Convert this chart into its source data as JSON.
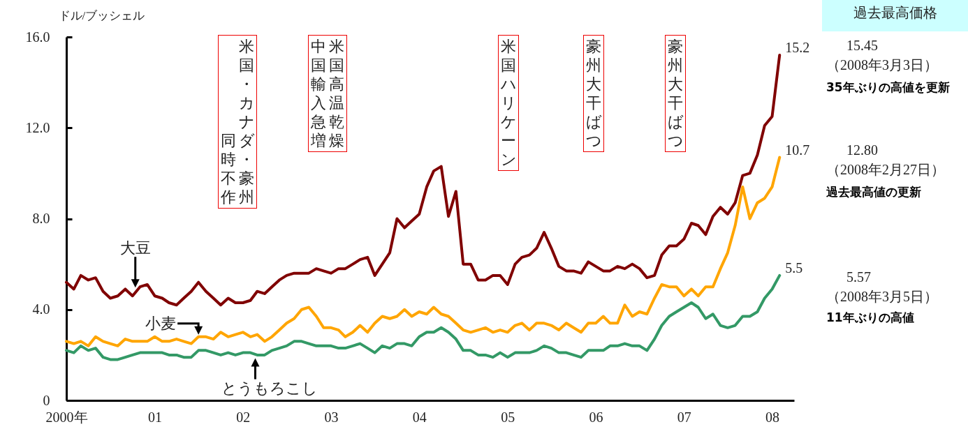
{
  "chart_data": {
    "type": "line",
    "ylabel": "ドル/ブッシェル",
    "x": [
      "2000-01",
      "2000-02",
      "2000-03",
      "2000-04",
      "2000-05",
      "2000-06",
      "2000-07",
      "2000-08",
      "2000-09",
      "2000-10",
      "2000-11",
      "2000-12",
      "2001-01",
      "2001-02",
      "2001-03",
      "2001-04",
      "2001-05",
      "2001-06",
      "2001-07",
      "2001-08",
      "2001-09",
      "2001-10",
      "2001-11",
      "2001-12",
      "2002-01",
      "2002-02",
      "2002-03",
      "2002-04",
      "2002-05",
      "2002-06",
      "2002-07",
      "2002-08",
      "2002-09",
      "2002-10",
      "2002-11",
      "2002-12",
      "2003-01",
      "2003-02",
      "2003-03",
      "2003-04",
      "2003-05",
      "2003-06",
      "2003-07",
      "2003-08",
      "2003-09",
      "2003-10",
      "2003-11",
      "2003-12",
      "2004-01",
      "2004-02",
      "2004-03",
      "2004-04",
      "2004-05",
      "2004-06",
      "2004-07",
      "2004-08",
      "2004-09",
      "2004-10",
      "2004-11",
      "2004-12",
      "2005-01",
      "2005-02",
      "2005-03",
      "2005-04",
      "2005-05",
      "2005-06",
      "2005-07",
      "2005-08",
      "2005-09",
      "2005-10",
      "2005-11",
      "2005-12",
      "2006-01",
      "2006-02",
      "2006-03",
      "2006-04",
      "2006-05",
      "2006-06",
      "2006-07",
      "2006-08",
      "2006-09",
      "2006-10",
      "2006-11",
      "2006-12",
      "2007-01",
      "2007-02",
      "2007-03",
      "2007-04",
      "2007-05",
      "2007-06",
      "2007-07",
      "2007-08",
      "2007-09",
      "2007-10",
      "2007-11",
      "2007-12",
      "2008-01",
      "2008-02"
    ],
    "series": [
      {
        "name": "大豆",
        "color": "#800000",
        "values": [
          5.2,
          4.9,
          5.5,
          5.3,
          5.4,
          4.8,
          4.5,
          4.6,
          4.9,
          4.6,
          5.0,
          5.1,
          4.6,
          4.5,
          4.3,
          4.2,
          4.5,
          4.8,
          5.2,
          4.8,
          4.5,
          4.2,
          4.5,
          4.3,
          4.3,
          4.4,
          4.8,
          4.7,
          5.0,
          5.3,
          5.5,
          5.6,
          5.6,
          5.6,
          5.8,
          5.7,
          5.6,
          5.8,
          5.8,
          6.0,
          6.2,
          6.3,
          5.5,
          6.0,
          6.5,
          8.0,
          7.6,
          7.9,
          8.2,
          9.4,
          10.1,
          10.3,
          8.1,
          9.2,
          6.0,
          6.0,
          5.3,
          5.3,
          5.5,
          5.5,
          5.1,
          6.0,
          6.3,
          6.4,
          6.7,
          7.4,
          6.7,
          5.9,
          5.7,
          5.7,
          5.6,
          6.1,
          5.9,
          5.7,
          5.7,
          5.9,
          5.8,
          6.0,
          5.8,
          5.4,
          5.5,
          6.4,
          6.8,
          6.8,
          7.1,
          7.8,
          7.7,
          7.3,
          8.1,
          8.5,
          8.2,
          8.7,
          9.9,
          10.0,
          10.8,
          12.1,
          12.5,
          15.2
        ],
        "value_labels": [
          null,
          null,
          null,
          null,
          null,
          null,
          null,
          null,
          null,
          null,
          null,
          null,
          null,
          null,
          null,
          null,
          null,
          null,
          null,
          null,
          null,
          null,
          null,
          null,
          null,
          null,
          null,
          null,
          null,
          null,
          null,
          null,
          null,
          null,
          null,
          null,
          null,
          null,
          null,
          null,
          null,
          null,
          null,
          null,
          null,
          null,
          null,
          null,
          null,
          null,
          null,
          null,
          null,
          null,
          null,
          null,
          null,
          null,
          null,
          null,
          null,
          null,
          null,
          null,
          null,
          null,
          null,
          null,
          null,
          null,
          null,
          null,
          null,
          null,
          null,
          null,
          null,
          null,
          null,
          null,
          null,
          null,
          null,
          null,
          null,
          null,
          null,
          null,
          null,
          null,
          null,
          null,
          null,
          null,
          null,
          null,
          null,
          "15.2"
        ]
      },
      {
        "name": "小麦",
        "color": "#ffa500",
        "values": [
          2.6,
          2.5,
          2.6,
          2.4,
          2.8,
          2.6,
          2.5,
          2.4,
          2.7,
          2.6,
          2.6,
          2.6,
          2.8,
          2.6,
          2.6,
          2.7,
          2.6,
          2.5,
          2.8,
          2.8,
          2.7,
          3.0,
          2.8,
          2.9,
          3.0,
          2.8,
          2.9,
          2.6,
          2.8,
          3.1,
          3.4,
          3.6,
          4.0,
          4.1,
          3.7,
          3.2,
          3.2,
          3.1,
          2.8,
          3.0,
          3.3,
          3.0,
          3.4,
          3.7,
          3.6,
          3.7,
          4.0,
          3.7,
          3.9,
          3.8,
          4.1,
          3.8,
          3.7,
          3.4,
          3.1,
          3.0,
          3.1,
          3.2,
          3.0,
          3.1,
          3.0,
          3.3,
          3.4,
          3.1,
          3.4,
          3.4,
          3.3,
          3.1,
          3.4,
          3.2,
          3.0,
          3.4,
          3.4,
          3.7,
          3.4,
          3.4,
          4.2,
          3.7,
          3.9,
          3.8,
          4.5,
          5.1,
          5.0,
          5.0,
          4.6,
          4.9,
          4.6,
          5.0,
          5.0,
          5.8,
          6.5,
          7.7,
          9.4,
          8.0,
          8.7,
          8.9,
          9.4,
          10.7
        ],
        "value_labels": [
          null,
          null,
          null,
          null,
          null,
          null,
          null,
          null,
          null,
          null,
          null,
          null,
          null,
          null,
          null,
          null,
          null,
          null,
          null,
          null,
          null,
          null,
          null,
          null,
          null,
          null,
          null,
          null,
          null,
          null,
          null,
          null,
          null,
          null,
          null,
          null,
          null,
          null,
          null,
          null,
          null,
          null,
          null,
          null,
          null,
          null,
          null,
          null,
          null,
          null,
          null,
          null,
          null,
          null,
          null,
          null,
          null,
          null,
          null,
          null,
          null,
          null,
          null,
          null,
          null,
          null,
          null,
          null,
          null,
          null,
          null,
          null,
          null,
          null,
          null,
          null,
          null,
          null,
          null,
          null,
          null,
          null,
          null,
          null,
          null,
          null,
          null,
          null,
          null,
          null,
          null,
          null,
          null,
          null,
          null,
          null,
          null,
          "10.7"
        ]
      },
      {
        "name": "とうもろこし",
        "color": "#339966",
        "values": [
          2.2,
          2.1,
          2.4,
          2.2,
          2.3,
          1.9,
          1.8,
          1.8,
          1.9,
          2.0,
          2.1,
          2.1,
          2.1,
          2.1,
          2.0,
          2.0,
          1.9,
          1.9,
          2.2,
          2.2,
          2.1,
          2.0,
          2.1,
          2.0,
          2.1,
          2.1,
          2.0,
          2.0,
          2.2,
          2.3,
          2.4,
          2.6,
          2.6,
          2.5,
          2.4,
          2.4,
          2.4,
          2.3,
          2.3,
          2.4,
          2.5,
          2.3,
          2.1,
          2.4,
          2.3,
          2.5,
          2.5,
          2.4,
          2.8,
          3.0,
          3.0,
          3.2,
          3.0,
          2.7,
          2.2,
          2.2,
          2.0,
          2.0,
          1.9,
          2.1,
          1.9,
          2.1,
          2.1,
          2.1,
          2.2,
          2.4,
          2.3,
          2.1,
          2.1,
          2.0,
          1.9,
          2.2,
          2.2,
          2.2,
          2.4,
          2.4,
          2.5,
          2.4,
          2.4,
          2.2,
          2.7,
          3.3,
          3.7,
          3.9,
          4.1,
          4.3,
          4.1,
          3.6,
          3.8,
          3.3,
          3.2,
          3.3,
          3.7,
          3.7,
          3.9,
          4.5,
          4.9,
          5.5
        ],
        "value_labels": [
          null,
          null,
          null,
          null,
          null,
          null,
          null,
          null,
          null,
          null,
          null,
          null,
          null,
          null,
          null,
          null,
          null,
          null,
          null,
          null,
          null,
          null,
          null,
          null,
          null,
          null,
          null,
          null,
          null,
          null,
          null,
          null,
          null,
          null,
          null,
          null,
          null,
          null,
          null,
          null,
          null,
          null,
          null,
          null,
          null,
          null,
          null,
          null,
          null,
          null,
          null,
          null,
          null,
          null,
          null,
          null,
          null,
          null,
          null,
          null,
          null,
          null,
          null,
          null,
          null,
          null,
          null,
          null,
          null,
          null,
          null,
          null,
          null,
          null,
          null,
          null,
          null,
          null,
          null,
          null,
          null,
          null,
          null,
          null,
          null,
          null,
          null,
          null,
          null,
          null,
          null,
          null,
          null,
          null,
          null,
          null,
          null,
          "5.5"
        ]
      }
    ],
    "xlim": [
      "2000-01",
      "2008-04"
    ],
    "xticks": [
      {
        "value": "2000-01",
        "label": "2000年"
      },
      {
        "value": "2001-01",
        "label": "01"
      },
      {
        "value": "2002-01",
        "label": "02"
      },
      {
        "value": "2003-01",
        "label": "03"
      },
      {
        "value": "2004-01",
        "label": "04"
      },
      {
        "value": "2005-01",
        "label": "05"
      },
      {
        "value": "2006-01",
        "label": "06"
      },
      {
        "value": "2007-01",
        "label": "07"
      },
      {
        "value": "2008-01",
        "label": "08"
      }
    ],
    "ylim": [
      0,
      16
    ],
    "yticks": [
      0,
      {
        "value": 4,
        "label": "4.0"
      },
      {
        "value": 8,
        "label": "8.0"
      },
      {
        "value": 12,
        "label": "12.0"
      },
      {
        "value": 16,
        "label": "16.0"
      }
    ],
    "annotations": [
      "米国・カナダ・豪州",
      "同時不作",
      "米国高温乾燥",
      "中国輸入急増",
      "米国ハリケーン",
      "豪州大干ばつ",
      "豪州大干ばつ",
      "過去最高価格",
      "15.45",
      "（2008年3月3日）",
      "35年ぶりの高値を更新",
      "12.80",
      "（2008年2月27日）",
      "過去最高値の更新",
      "5.57",
      "（2008年3月5日）",
      "11年ぶりの高値"
    ]
  }
}
